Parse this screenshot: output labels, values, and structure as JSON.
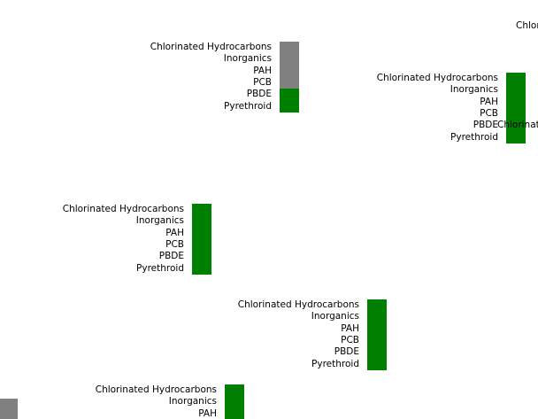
{
  "colors": {
    "present": "#008000",
    "absent": "#808080",
    "background": "#ffffff",
    "text": "#000000"
  },
  "markers": [
    {
      "id": "marker-1",
      "labels": [
        "Chlorinated Hydrocarbons",
        "Inorganics",
        "PAH",
        "PCB",
        "PBDE",
        "Pyrethroid"
      ],
      "statuses": [
        "absent",
        "absent",
        "absent",
        "absent",
        "present",
        "present"
      ]
    },
    {
      "id": "marker-2",
      "labels": [
        "Chlorinated Hydrocarbons",
        "Inorganics",
        "PAH",
        "PCB",
        "PBDE",
        "Pyrethroid"
      ],
      "statuses": [
        "present",
        "present",
        "present",
        "present",
        "present",
        "present"
      ]
    },
    {
      "id": "marker-3",
      "labels": [
        "Chlorinated Hydrocarbons",
        "Inorganics",
        "PAH",
        "PCB",
        "PBDE",
        "Pyrethroid"
      ],
      "statuses": [
        "present",
        "present",
        "present",
        "present",
        "present",
        "present"
      ]
    },
    {
      "id": "marker-4",
      "labels": [
        "Chlorinated Hydrocarbons",
        "Inorganics",
        "PAH",
        "PCB",
        "PBDE",
        "Pyrethroid"
      ],
      "statuses": [
        "present",
        "present",
        "present",
        "present",
        "present",
        "present"
      ]
    },
    {
      "id": "marker-5",
      "labels": [
        "Chlorinated Hydrocarbons",
        "Inorganics",
        "PAH"
      ],
      "statuses": [
        "present",
        "present",
        "present"
      ]
    }
  ],
  "clipped_texts": {
    "top_right": "Chlor",
    "overlap": "Chlorinate"
  }
}
